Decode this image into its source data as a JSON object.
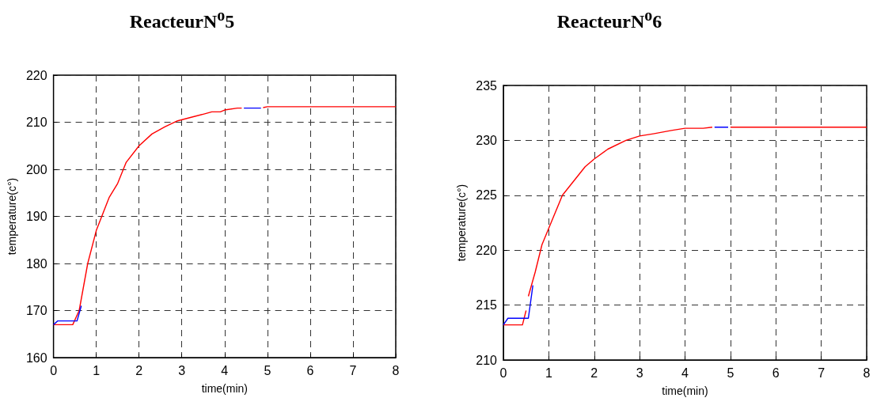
{
  "chart_data": [
    {
      "type": "line",
      "title": "ReacteurN$^{o}$5",
      "xlabel": "time(min)",
      "ylabel": "temperature(c°)",
      "xlim": [
        0,
        8
      ],
      "xticks": [
        0,
        1,
        2,
        3,
        4,
        5,
        6,
        7,
        8
      ],
      "ylim": [
        160,
        220
      ],
      "yticks": [
        160,
        170,
        180,
        190,
        200,
        210,
        220
      ],
      "grid": true,
      "line_style": "solid",
      "series": [
        {
          "color": "#0000ff",
          "x": [
            0,
            0.1,
            0.55,
            0.65,
            4.4,
            4.45,
            4.85
          ],
          "values": [
            167,
            167.8,
            167.8,
            171,
            null,
            213,
            213
          ]
        },
        {
          "color": "#ff0000",
          "x": [
            0,
            0.45,
            0.6,
            0.8,
            1,
            1.3,
            1.5,
            1.7,
            2,
            2.3,
            2.6,
            2.9,
            3.2,
            3.5,
            3.7,
            3.9,
            4,
            4.3,
            4.4,
            4.6,
            4.9,
            5,
            8
          ],
          "values": [
            167,
            167,
            170,
            180,
            187,
            194,
            197,
            201.5,
            205,
            207.5,
            209,
            210.3,
            211,
            211.7,
            212.2,
            212.2,
            212.6,
            213,
            213,
            null,
            213.1,
            213.3,
            213.3
          ]
        }
      ]
    },
    {
      "type": "line",
      "title": "ReacteurN$^{o}$6",
      "xlabel": "time(min)",
      "ylabel": "temperature(c°)",
      "xlim": [
        0,
        8
      ],
      "xticks": [
        0,
        1,
        2,
        3,
        4,
        5,
        6,
        7,
        8
      ],
      "ylim": [
        210,
        235
      ],
      "yticks": [
        210,
        215,
        220,
        225,
        230,
        235
      ],
      "grid": true,
      "line_style": "solid",
      "series": [
        {
          "color": "#0000ff",
          "x": [
            0,
            0.1,
            0.55,
            0.65,
            4.6,
            4.65,
            4.95
          ],
          "values": [
            213.2,
            213.8,
            213.8,
            216.8,
            null,
            231.2,
            231.2
          ]
        },
        {
          "color": "#ff0000",
          "x": [
            0,
            0.42,
            0.5,
            0.52,
            0.55,
            0.7,
            0.85,
            1.1,
            1.3,
            1.55,
            1.8,
            2,
            2.3,
            2.7,
            3,
            3.3,
            3.7,
            4,
            4.4,
            4.6,
            4.8,
            5,
            8
          ],
          "values": [
            213.2,
            213.2,
            214.5,
            null,
            215.8,
            218,
            220.5,
            223,
            225,
            226.3,
            227.6,
            228.3,
            229.2,
            230,
            230.4,
            230.6,
            230.9,
            231.1,
            231.1,
            231.2,
            null,
            231.2,
            231.2
          ]
        }
      ]
    }
  ]
}
